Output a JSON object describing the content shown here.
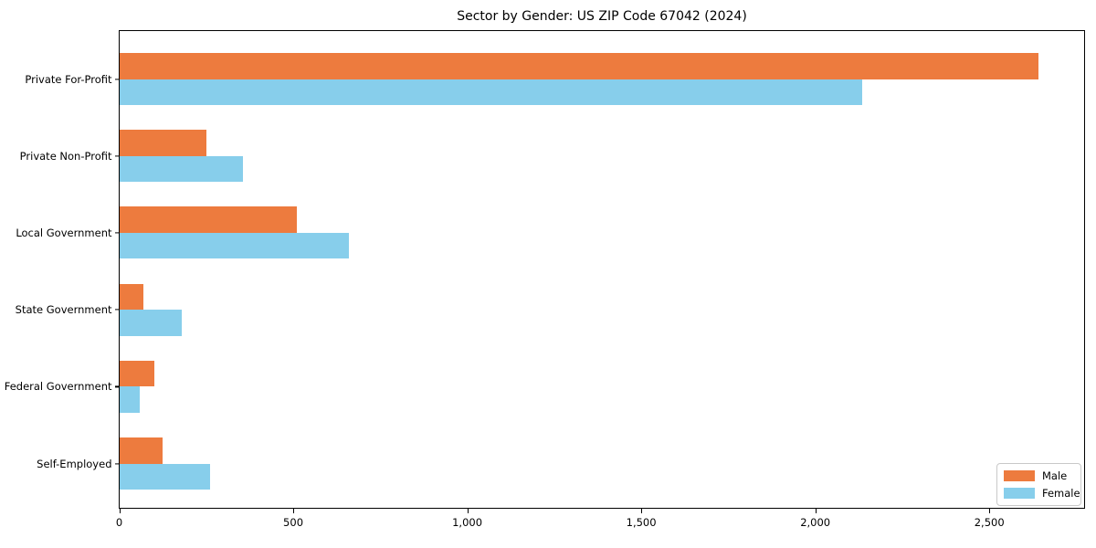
{
  "title": "Sector by Gender: US ZIP Code 67042 (2024)",
  "chart_data": {
    "type": "bar",
    "orientation": "horizontal",
    "title": "Sector by Gender: US ZIP Code 67042 (2024)",
    "categories": [
      "Private For-Profit",
      "Private Non-Profit",
      "Local Government",
      "State Government",
      "Federal Government",
      "Self-Employed"
    ],
    "series": [
      {
        "name": "Male",
        "color": "#ED7B3E",
        "values": [
          2640,
          250,
          510,
          70,
          100,
          125
        ]
      },
      {
        "name": "Female",
        "color": "#87CEEB",
        "values": [
          2135,
          355,
          660,
          180,
          60,
          260
        ]
      }
    ],
    "xlabel": "",
    "ylabel": "",
    "xlim": [
      0,
      2775
    ],
    "xticks": [
      0,
      500,
      1000,
      1500,
      2000,
      2500
    ],
    "xtick_labels": [
      "0",
      "500",
      "1,000",
      "1,500",
      "2,000",
      "2,500"
    ],
    "grid": false,
    "legend_position": "lower right",
    "bar_order_in_group": [
      "Male",
      "Female"
    ]
  }
}
